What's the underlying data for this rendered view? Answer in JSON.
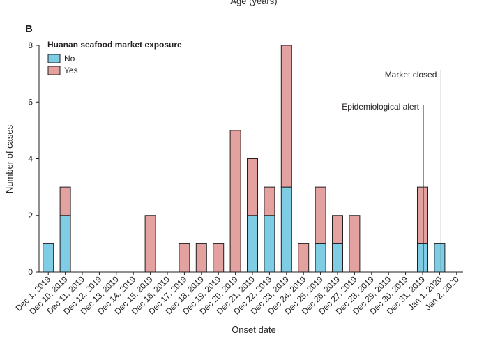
{
  "chart_data": {
    "type": "bar",
    "stacked": true,
    "panel_label": "B",
    "top_cut_text": "Age (years)",
    "xlabel": "Onset date",
    "ylabel": "Number of cases",
    "ylim": [
      0,
      8
    ],
    "yticks": [
      0,
      2,
      4,
      6,
      8
    ],
    "legend": {
      "title": "Huanan seafood market exposure",
      "position": "top-left"
    },
    "categories": [
      "Dec 1, 2019",
      "Dec 10, 2019",
      "Dec 11, 2019",
      "Dec 12, 2019",
      "Dec 13, 2019",
      "Dec 14, 2019",
      "Dec 15, 2019",
      "Dec 16, 2019",
      "Dec 17, 2019",
      "Dec 18, 2019",
      "Dec 19, 2019",
      "Dec 20, 2019",
      "Dec 21, 2019",
      "Dec 22, 2019",
      "Dec 23, 2019",
      "Dec 24, 2019",
      "Dec 25, 2019",
      "Dec 26, 2019",
      "Dec 27, 2019",
      "Dec 28, 2019",
      "Dec 29, 2019",
      "Dec 30, 2019",
      "Dec 31, 2019",
      "Jan 1, 2020",
      "Jan 2, 2020"
    ],
    "series": [
      {
        "name": "No",
        "color": "#7ecde4",
        "values": [
          1,
          2,
          0,
          0,
          0,
          0,
          0,
          0,
          0,
          0,
          0,
          0,
          2,
          2,
          3,
          0,
          1,
          1,
          0,
          0,
          0,
          0,
          1,
          1,
          0
        ]
      },
      {
        "name": "Yes",
        "color": "#e3a19f",
        "values": [
          0,
          1,
          0,
          0,
          0,
          0,
          2,
          0,
          1,
          1,
          1,
          5,
          2,
          1,
          5,
          1,
          2,
          1,
          2,
          0,
          0,
          0,
          2,
          0,
          0
        ]
      }
    ],
    "annotations": [
      {
        "text": "Epidemiological alert",
        "category": "Dec 31, 2019"
      },
      {
        "text": "Market closed",
        "category": "Jan 1, 2020"
      }
    ]
  }
}
